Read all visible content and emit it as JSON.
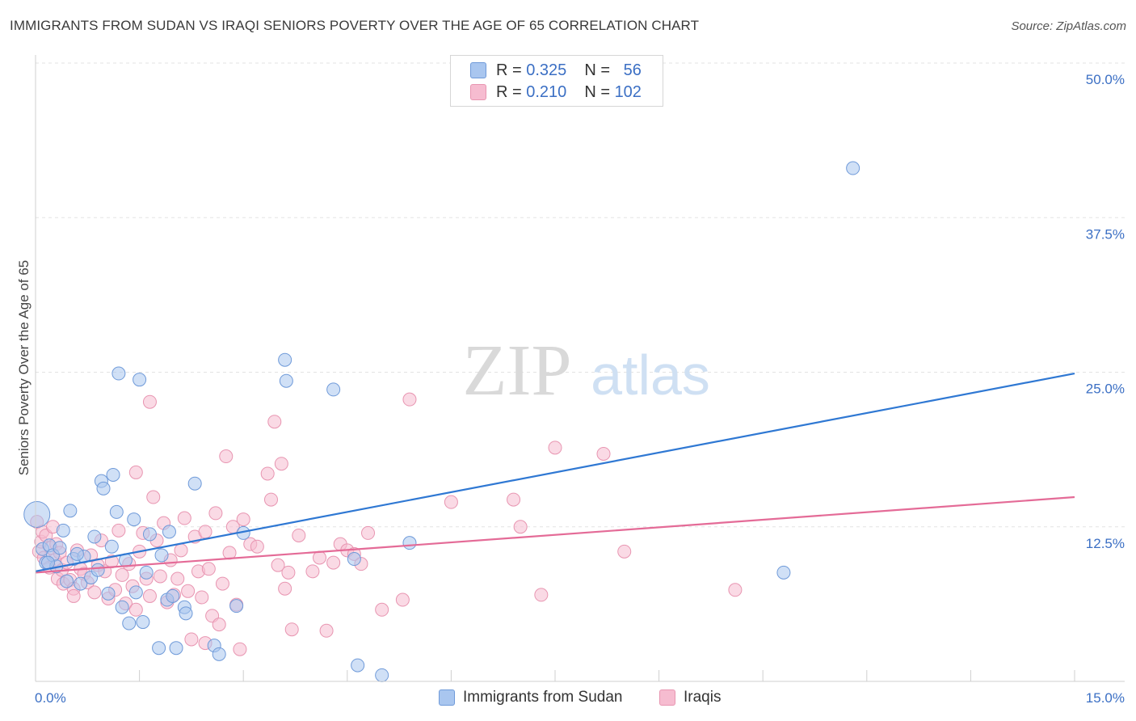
{
  "header": {
    "title": "IMMIGRANTS FROM SUDAN VS IRAQI SENIORS POVERTY OVER THE AGE OF 65 CORRELATION CHART",
    "source": "Source: ZipAtlas.com"
  },
  "watermark": {
    "zip": "ZIP",
    "atlas": "atlas"
  },
  "legend": {
    "rows": [
      {
        "r_label": "R =",
        "r_value": "0.325",
        "n_label": "N =",
        "n_value": "56"
      },
      {
        "r_label": "R =",
        "r_value": "0.210",
        "n_label": "N =",
        "n_value": "102"
      }
    ]
  },
  "bottom_legend": {
    "items": [
      {
        "label": "Immigrants from Sudan"
      },
      {
        "label": "Iraqis"
      }
    ]
  },
  "colors": {
    "sudan_fill": "#a9c6ef",
    "sudan_stroke": "#6f9ad9",
    "sudan_line": "#2f78d3",
    "iraqi_fill": "#f6bcd0",
    "iraqi_stroke": "#e895b1",
    "iraqi_line": "#e46b97",
    "grid": "#e3e3e3",
    "tick_label": "#3b6fc4"
  },
  "chart_data": {
    "type": "scatter",
    "title": "IMMIGRANTS FROM SUDAN VS IRAQI SENIORS POVERTY OVER THE AGE OF 65 CORRELATION CHART",
    "xlabel": "",
    "ylabel": "Seniors Poverty Over the Age of 65",
    "xlim": [
      0,
      15
    ],
    "ylim": [
      0,
      50
    ],
    "x_tick_labels": {
      "min": "0.0%",
      "max": "15.0%"
    },
    "y_ticks": [
      {
        "value": 12.5,
        "label": "12.5%"
      },
      {
        "value": 25,
        "label": "25.0%"
      },
      {
        "value": 37.5,
        "label": "37.5%"
      },
      {
        "value": 50,
        "label": "50.0%"
      }
    ],
    "grid": true,
    "legend_position": "top-center",
    "series": [
      {
        "name": "Immigrants from Sudan",
        "trend": {
          "x": [
            0,
            15
          ],
          "y": [
            8.9,
            24.9
          ]
        },
        "points": [
          [
            0.02,
            13.5
          ],
          [
            0.1,
            10.7
          ],
          [
            0.15,
            9.6
          ],
          [
            0.2,
            11.0
          ],
          [
            0.25,
            10.2
          ],
          [
            0.3,
            9.3
          ],
          [
            0.35,
            10.8
          ],
          [
            0.4,
            12.2
          ],
          [
            0.45,
            8.1
          ],
          [
            0.5,
            13.8
          ],
          [
            0.55,
            9.9
          ],
          [
            0.65,
            7.9
          ],
          [
            0.7,
            10.1
          ],
          [
            0.8,
            8.4
          ],
          [
            0.85,
            11.7
          ],
          [
            0.9,
            9.0
          ],
          [
            0.95,
            16.2
          ],
          [
            0.98,
            15.6
          ],
          [
            1.05,
            7.1
          ],
          [
            1.1,
            10.9
          ],
          [
            1.12,
            16.7
          ],
          [
            1.17,
            13.7
          ],
          [
            1.2,
            24.9
          ],
          [
            1.25,
            6.0
          ],
          [
            1.3,
            9.8
          ],
          [
            1.35,
            4.7
          ],
          [
            1.42,
            13.1
          ],
          [
            1.45,
            7.2
          ],
          [
            1.5,
            24.4
          ],
          [
            1.55,
            4.8
          ],
          [
            1.6,
            8.8
          ],
          [
            1.65,
            11.9
          ],
          [
            1.78,
            2.7
          ],
          [
            1.82,
            10.2
          ],
          [
            1.9,
            6.6
          ],
          [
            1.93,
            12.1
          ],
          [
            1.98,
            6.9
          ],
          [
            2.03,
            2.7
          ],
          [
            2.15,
            6.0
          ],
          [
            2.17,
            5.5
          ],
          [
            2.3,
            16.0
          ],
          [
            2.58,
            2.9
          ],
          [
            2.65,
            2.2
          ],
          [
            2.9,
            6.1
          ],
          [
            3.0,
            12.0
          ],
          [
            3.6,
            26.0
          ],
          [
            3.62,
            24.3
          ],
          [
            4.3,
            23.6
          ],
          [
            4.6,
            9.9
          ],
          [
            4.65,
            1.3
          ],
          [
            5.4,
            11.2
          ],
          [
            11.8,
            41.5
          ],
          [
            10.8,
            8.8
          ],
          [
            0.18,
            9.6
          ],
          [
            0.6,
            10.3
          ],
          [
            5.0,
            0.5
          ]
        ]
      },
      {
        "name": "Iraqis",
        "trend": {
          "x": [
            0,
            15
          ],
          "y": [
            8.8,
            14.9
          ]
        },
        "points": [
          [
            0.02,
            12.9
          ],
          [
            0.05,
            10.5
          ],
          [
            0.08,
            11.3
          ],
          [
            0.1,
            12.1
          ],
          [
            0.12,
            10.0
          ],
          [
            0.15,
            11.8
          ],
          [
            0.2,
            9.2
          ],
          [
            0.22,
            10.8
          ],
          [
            0.25,
            12.5
          ],
          [
            0.28,
            9.8
          ],
          [
            0.3,
            11.1
          ],
          [
            0.32,
            8.3
          ],
          [
            0.35,
            10.4
          ],
          [
            0.38,
            9.0
          ],
          [
            0.4,
            7.9
          ],
          [
            0.45,
            9.6
          ],
          [
            0.5,
            8.2
          ],
          [
            0.55,
            7.5
          ],
          [
            0.6,
            10.6
          ],
          [
            0.65,
            9.1
          ],
          [
            0.7,
            8.7
          ],
          [
            0.75,
            8.0
          ],
          [
            0.8,
            10.2
          ],
          [
            0.85,
            7.2
          ],
          [
            0.9,
            9.4
          ],
          [
            0.95,
            11.4
          ],
          [
            1.0,
            8.9
          ],
          [
            1.05,
            6.7
          ],
          [
            1.1,
            9.7
          ],
          [
            1.15,
            7.4
          ],
          [
            1.2,
            12.2
          ],
          [
            1.25,
            8.6
          ],
          [
            1.3,
            6.3
          ],
          [
            1.35,
            9.5
          ],
          [
            1.4,
            7.7
          ],
          [
            1.45,
            5.8
          ],
          [
            1.5,
            10.5
          ],
          [
            1.55,
            12.0
          ],
          [
            1.6,
            8.3
          ],
          [
            1.65,
            6.9
          ],
          [
            1.7,
            14.9
          ],
          [
            1.75,
            11.4
          ],
          [
            1.8,
            8.5
          ],
          [
            1.85,
            12.8
          ],
          [
            1.9,
            6.4
          ],
          [
            1.95,
            9.8
          ],
          [
            2.0,
            7.0
          ],
          [
            2.05,
            8.3
          ],
          [
            2.1,
            10.6
          ],
          [
            2.15,
            13.2
          ],
          [
            2.2,
            7.3
          ],
          [
            2.25,
            3.4
          ],
          [
            2.3,
            11.7
          ],
          [
            2.35,
            8.9
          ],
          [
            2.4,
            6.8
          ],
          [
            2.45,
            12.1
          ],
          [
            2.5,
            9.1
          ],
          [
            2.55,
            5.3
          ],
          [
            2.6,
            13.6
          ],
          [
            2.65,
            4.6
          ],
          [
            2.7,
            7.9
          ],
          [
            2.75,
            18.2
          ],
          [
            2.8,
            10.4
          ],
          [
            2.85,
            12.5
          ],
          [
            2.9,
            6.2
          ],
          [
            2.95,
            2.6
          ],
          [
            3.0,
            13.1
          ],
          [
            3.1,
            11.1
          ],
          [
            3.2,
            10.9
          ],
          [
            3.35,
            16.8
          ],
          [
            3.4,
            14.7
          ],
          [
            3.45,
            21.0
          ],
          [
            3.5,
            9.4
          ],
          [
            3.55,
            17.6
          ],
          [
            3.6,
            7.5
          ],
          [
            3.65,
            8.8
          ],
          [
            3.7,
            4.2
          ],
          [
            3.8,
            11.8
          ],
          [
            4.0,
            8.9
          ],
          [
            4.1,
            10.0
          ],
          [
            4.2,
            4.1
          ],
          [
            4.3,
            9.6
          ],
          [
            4.4,
            11.1
          ],
          [
            4.5,
            10.6
          ],
          [
            4.6,
            10.3
          ],
          [
            4.7,
            9.5
          ],
          [
            4.8,
            12.0
          ],
          [
            5.0,
            5.8
          ],
          [
            5.3,
            6.6
          ],
          [
            5.4,
            22.8
          ],
          [
            6.0,
            14.5
          ],
          [
            6.9,
            14.7
          ],
          [
            7.0,
            12.5
          ],
          [
            7.3,
            7.0
          ],
          [
            7.5,
            18.9
          ],
          [
            8.5,
            10.5
          ],
          [
            8.2,
            18.4
          ],
          [
            10.1,
            7.4
          ],
          [
            1.65,
            22.6
          ],
          [
            0.55,
            6.9
          ],
          [
            1.45,
            16.9
          ],
          [
            2.45,
            3.1
          ]
        ]
      }
    ]
  }
}
